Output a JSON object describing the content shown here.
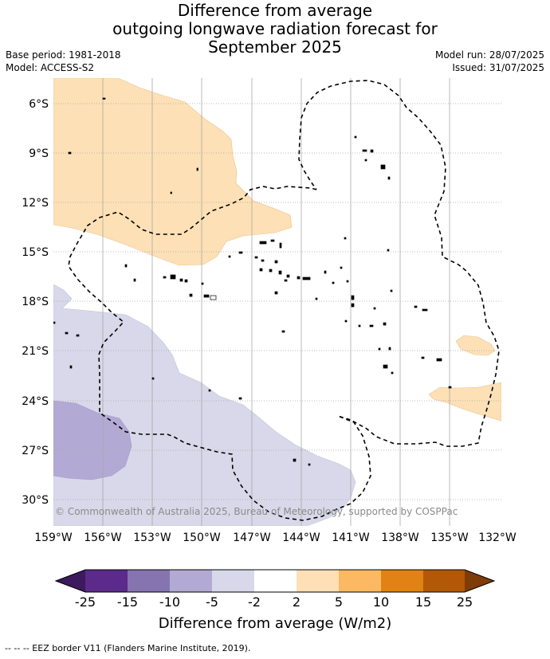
{
  "title": {
    "line1": "Difference from average",
    "line2": "outgoing longwave radiation forecast for",
    "line3": "September 2025"
  },
  "meta": {
    "base_period": "Base period: 1981-2018",
    "model": "Model: ACCESS-S2",
    "model_run": "Model run: 28/07/2025",
    "issued": "Issued: 31/07/2025"
  },
  "map": {
    "lat_labels": [
      "6°S",
      "9°S",
      "12°S",
      "15°S",
      "18°S",
      "21°S",
      "24°S",
      "27°S",
      "30°S"
    ],
    "lon_labels": [
      "159°W",
      "156°W",
      "153°W",
      "150°W",
      "147°W",
      "144°W",
      "141°W",
      "138°W",
      "135°W",
      "132°W"
    ],
    "copyright": "© Commonwealth of Australia 2025, Bureau of Meteorology, supported by COSPPac",
    "grid": true
  },
  "colorbar": {
    "ticks": [
      "-25",
      "-15",
      "-10",
      "-5",
      "-2",
      "2",
      "5",
      "10",
      "15",
      "25"
    ],
    "colors": [
      "#3b1a5e",
      "#5b2a8a",
      "#8574b0",
      "#b2aad4",
      "#d8d8ea",
      "#ffffff",
      "#fde0b6",
      "#fdb863",
      "#e08214",
      "#b35806",
      "#7f3b08"
    ],
    "title": "Difference from average (W/m2)"
  },
  "legend": {
    "eez_text": "-- -- -- EEZ border V11 (Flanders Marine Institute, 2019)."
  }
}
